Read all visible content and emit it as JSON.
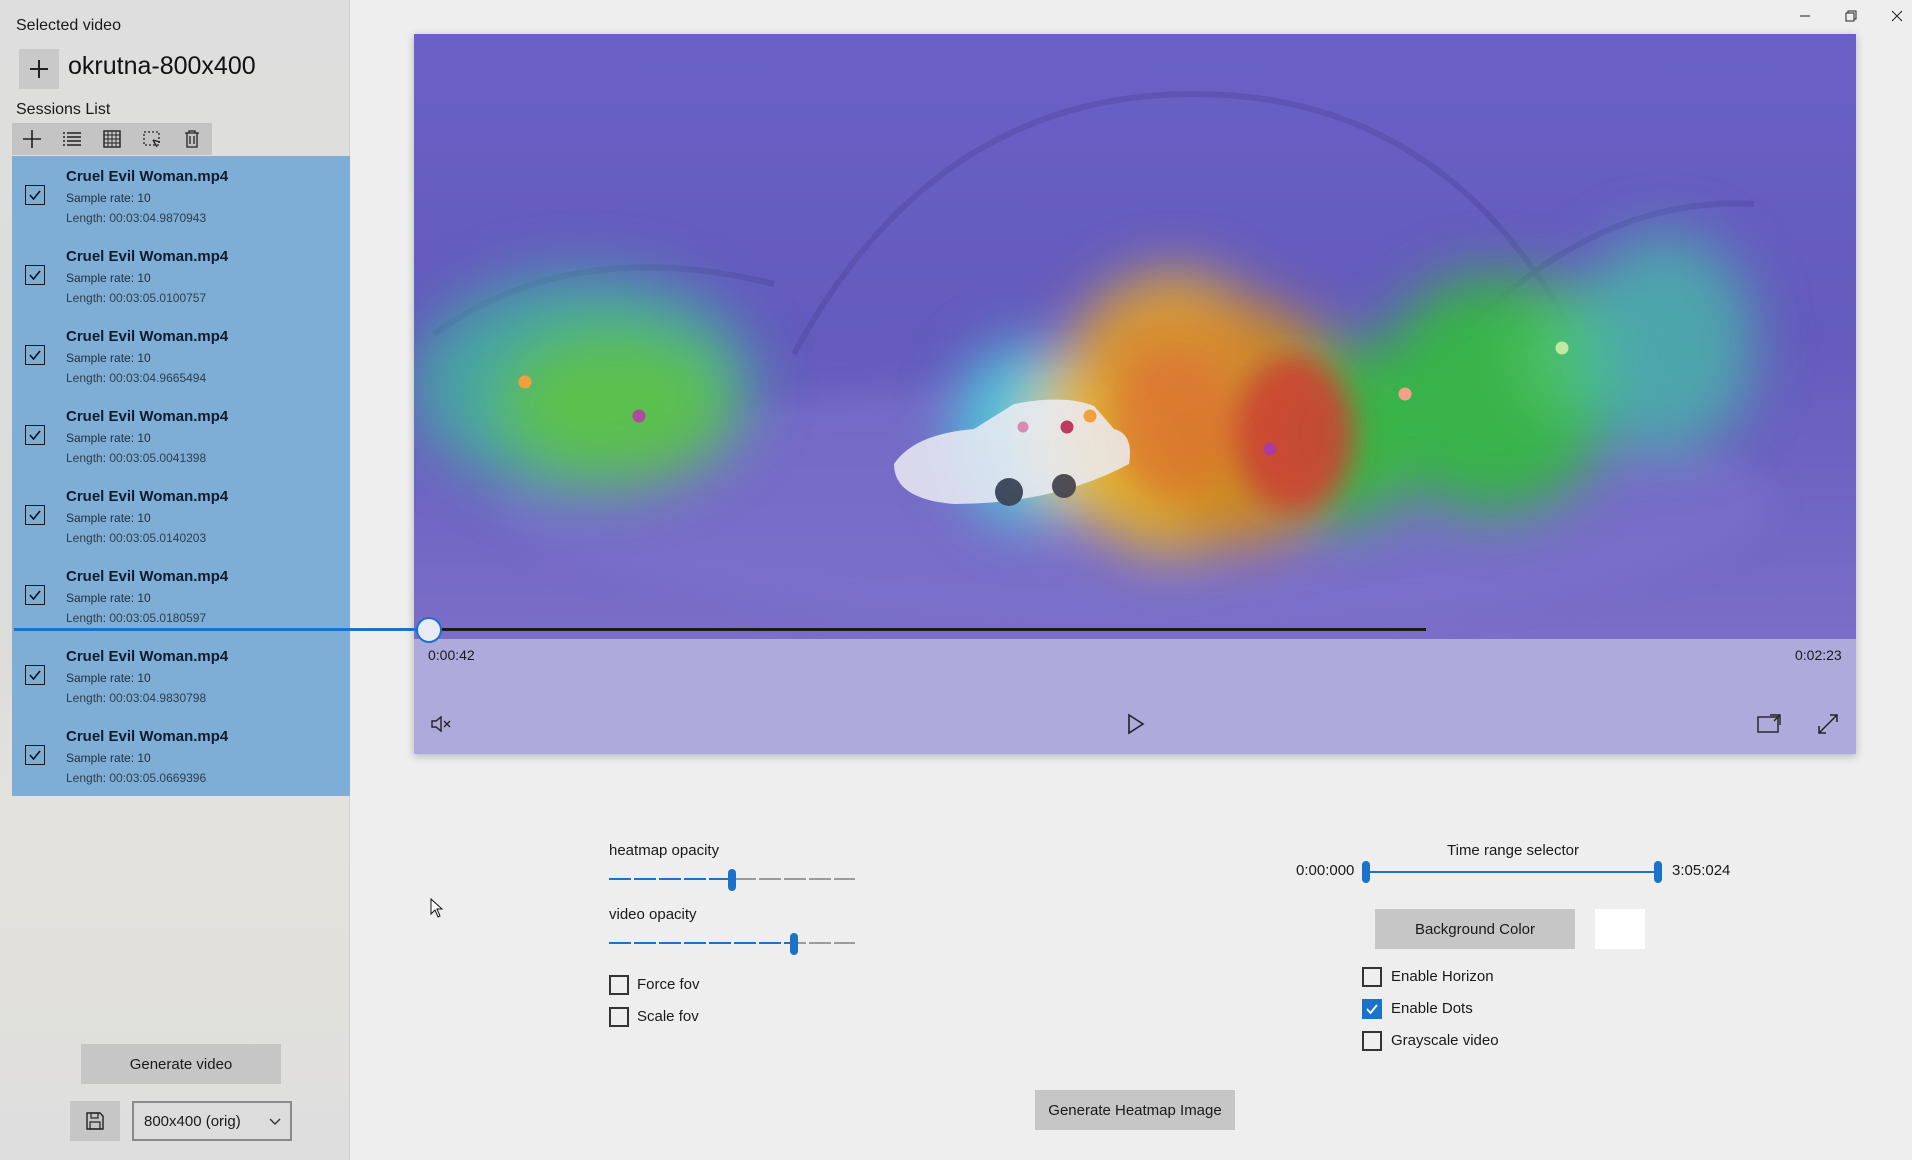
{
  "selected_video": {
    "label": "Selected video",
    "name": "okrutna-800x400"
  },
  "sessions": {
    "label": "Sessions List",
    "toolbar_icons": [
      "add-icon",
      "list-view-icon",
      "grid-view-icon",
      "select-icon",
      "delete-icon"
    ],
    "items": [
      {
        "title": "Cruel Evil Woman.mp4",
        "sample_rate": "Sample rate: 10",
        "length": "Length: 00:03:04.9870943",
        "checked": true
      },
      {
        "title": "Cruel Evil Woman.mp4",
        "sample_rate": "Sample rate: 10",
        "length": "Length: 00:03:05.0100757",
        "checked": true
      },
      {
        "title": "Cruel Evil Woman.mp4",
        "sample_rate": "Sample rate: 10",
        "length": "Length: 00:03:04.9665494",
        "checked": true
      },
      {
        "title": "Cruel Evil Woman.mp4",
        "sample_rate": "Sample rate: 10",
        "length": "Length: 00:03:05.0041398",
        "checked": true
      },
      {
        "title": "Cruel Evil Woman.mp4",
        "sample_rate": "Sample rate: 10",
        "length": "Length: 00:03:05.0140203",
        "checked": true
      },
      {
        "title": "Cruel Evil Woman.mp4",
        "sample_rate": "Sample rate: 10",
        "length": "Length: 00:03:05.0180597",
        "checked": true
      },
      {
        "title": "Cruel Evil Woman.mp4",
        "sample_rate": "Sample rate: 10",
        "length": "Length: 00:03:04.9830798",
        "checked": true
      },
      {
        "title": "Cruel Evil Woman.mp4",
        "sample_rate": "Sample rate: 10",
        "length": "Length: 00:03:05.0669396",
        "checked": true
      }
    ]
  },
  "bottom_left": {
    "generate_video": "Generate video",
    "resolution": "800x400 (orig)"
  },
  "player": {
    "current_time": "0:00:42",
    "total_time": "0:02:23",
    "progress": 0.294,
    "muted": true
  },
  "settings": {
    "heatmap_opacity_label": "heatmap opacity",
    "heatmap_opacity": 0.5,
    "video_opacity_label": "video opacity",
    "video_opacity": 0.75,
    "force_fov": {
      "label": "Force fov",
      "checked": false
    },
    "scale_fov": {
      "label": "Scale fov",
      "checked": false
    },
    "time_range": {
      "title": "Time range selector",
      "start": "0:00:000",
      "end": "3:05:024"
    },
    "background_color_label": "Background Color",
    "background_color": "#ffffff",
    "enable_horizon": {
      "label": "Enable Horizon",
      "checked": false
    },
    "enable_dots": {
      "label": "Enable Dots",
      "checked": true
    },
    "grayscale_video": {
      "label": "Grayscale video",
      "checked": false
    },
    "generate_heatmap": "Generate Heatmap Image"
  },
  "colors": {
    "accent": "#1a73c9",
    "session_list_bg": "#7eaed6",
    "heatmap_base": "#6e66c4"
  }
}
